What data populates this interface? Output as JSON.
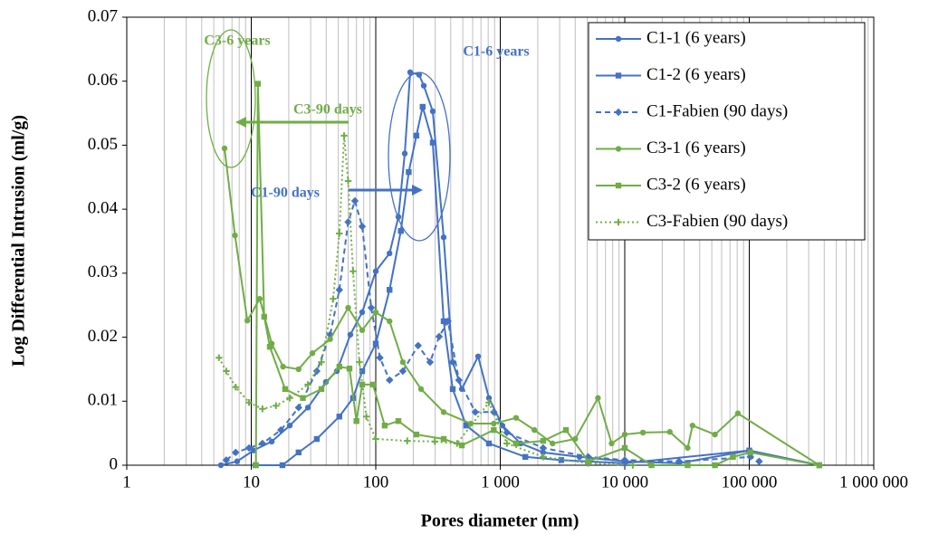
{
  "chart_data": {
    "type": "line",
    "xlabel": "Pores diameter  (nm)",
    "ylabel": "Log Differential Intrusion (ml/g)",
    "xscale": "log",
    "xlim": [
      1,
      1000000
    ],
    "xticks": [
      1,
      10,
      100,
      {
        "value": 1000,
        "label": "1 000"
      },
      {
        "value": 10000,
        "label": "10 000"
      },
      {
        "value": 100000,
        "label": "100 000"
      },
      {
        "value": 1000000,
        "label": "1 000 000"
      }
    ],
    "ylim": [
      0,
      0.07
    ],
    "yticks": [
      0,
      0.01,
      0.02,
      0.03,
      0.04,
      0.05,
      0.06,
      0.07
    ],
    "grid": true,
    "minor_grid": true,
    "legend": "upper right",
    "annotations": [
      {
        "text": "C3-6 years",
        "color": "#70ad47"
      },
      {
        "text": "C3-90 days",
        "color": "#70ad47"
      },
      {
        "text": "C1-6 years",
        "color": "#4472c4"
      },
      {
        "text": "C1-90 days",
        "color": "#4472c4"
      }
    ],
    "series": [
      {
        "name": "C1-1 (6 years)",
        "color": "#4472c4",
        "marker": "circle",
        "dash": "solid",
        "x": [
          5.7,
          7.7,
          10.4,
          14.6,
          20.4,
          28.5,
          39.8,
          48.7,
          62.5,
          77.8,
          100,
          129,
          152,
          171,
          189,
          223,
          243,
          287,
          351,
          415,
          491,
          664,
          811,
          1040,
          1460,
          2210,
          4330,
          10000,
          27300,
          100000,
          365000
        ],
        "values": [
          0,
          0.0006,
          0.0023,
          0.0037,
          0.0062,
          0.009,
          0.013,
          0.0147,
          0.0204,
          0.0239,
          0.0303,
          0.0331,
          0.0388,
          0.0487,
          0.0614,
          0.061,
          0.0593,
          0.0553,
          0.0356,
          0.0161,
          0.0119,
          0.017,
          0.0105,
          0.0062,
          0.0034,
          0.002,
          0.0013,
          0.0006,
          0.0003,
          0.0023,
          0
        ]
      },
      {
        "name": "C1-2 (6 years)",
        "color": "#4472c4",
        "marker": "square",
        "dash": "solid",
        "x": [
          10.8,
          17.8,
          24,
          33.6,
          51,
          65.7,
          77.8,
          100,
          129,
          159,
          184,
          212,
          238,
          287,
          351,
          415,
          533,
          811,
          1590,
          3090,
          10000,
          100000,
          365000
        ],
        "values": [
          0,
          0,
          0.002,
          0.0041,
          0.0076,
          0.0105,
          0.0147,
          0.019,
          0.0274,
          0.0366,
          0.0458,
          0.0515,
          0.056,
          0.0504,
          0.0225,
          0.0119,
          0.0062,
          0.0034,
          0.0013,
          0.0008,
          0.0003,
          0.0023,
          0
        ]
      },
      {
        "name": "C1-Fabien (90 days)",
        "color": "#4472c4",
        "marker": "diamond",
        "dash": "dashed",
        "x": [
          6.3,
          7.5,
          9.6,
          12.3,
          17.3,
          24,
          33.6,
          43,
          51,
          60,
          68,
          77.8,
          92,
          108,
          129,
          165,
          219,
          273,
          323,
          380,
          465,
          630,
          887,
          1130,
          2210,
          5090,
          10000,
          27300,
          102000,
          120000
        ],
        "values": [
          0.0008,
          0.002,
          0.0027,
          0.0034,
          0.0055,
          0.009,
          0.0147,
          0.0204,
          0.0274,
          0.038,
          0.0413,
          0.0373,
          0.0246,
          0.0168,
          0.0133,
          0.0147,
          0.0187,
          0.0161,
          0.0201,
          0.0225,
          0.0133,
          0.0083,
          0.0083,
          0.0051,
          0.0027,
          0.0013,
          0.0008,
          0.0006,
          0.0013,
          0.0006
        ]
      },
      {
        "name": "C3-1 (6 years)",
        "color": "#70ad47",
        "marker": "circle",
        "dash": "solid",
        "x": [
          6.1,
          7.4,
          9.3,
          11.7,
          14.6,
          18,
          24,
          31,
          43,
          60,
          77.8,
          100,
          129,
          165,
          231,
          351,
          580,
          887,
          1340,
          1880,
          2630,
          4000,
          6090,
          7840,
          10000,
          14000,
          23000,
          32000,
          35000,
          53000,
          81000,
          365000
        ],
        "values": [
          0.0495,
          0.0359,
          0.0226,
          0.026,
          0.019,
          0.0154,
          0.015,
          0.0175,
          0.0197,
          0.0246,
          0.0211,
          0.0239,
          0.0225,
          0.0161,
          0.0119,
          0.0083,
          0.0065,
          0.0065,
          0.0074,
          0.0055,
          0.0034,
          0.0041,
          0.0105,
          0.0034,
          0.0048,
          0.0051,
          0.0052,
          0.0027,
          0.0062,
          0.0048,
          0.0081,
          0
        ]
      },
      {
        "name": "C3-2 (6 years)",
        "color": "#70ad47",
        "marker": "square",
        "dash": "solid",
        "x": [
          10.9,
          11.3,
          12.7,
          14.1,
          18.7,
          26,
          36.6,
          51,
          61.5,
          70,
          77.8,
          95,
          118,
          152,
          212,
          351,
          491,
          887,
          1340,
          2210,
          3370,
          5090,
          10000,
          16400,
          32000,
          53000,
          74000,
          102000,
          365000
        ],
        "values": [
          0,
          0.0596,
          0.0232,
          0.0185,
          0.0119,
          0.0105,
          0.0119,
          0.0154,
          0.0151,
          0.0069,
          0.0126,
          0.0126,
          0.0062,
          0.0069,
          0.0048,
          0.0041,
          0.0031,
          0.0055,
          0.0034,
          0.0038,
          0.0055,
          0.0006,
          0.0027,
          0,
          0,
          0,
          0.0013,
          0.002,
          0
        ]
      },
      {
        "name": "C3-Fabien (90 days)",
        "color": "#70ad47",
        "marker": "plus",
        "dash": "dotted",
        "x": [
          5.5,
          6.3,
          7.5,
          9.6,
          12.3,
          15.8,
          20.4,
          28.5,
          36.6,
          45.5,
          51,
          55.7,
          60,
          65.7,
          73.9,
          84,
          100,
          179,
          298,
          450,
          811,
          1130,
          2210,
          5090,
          11600
        ],
        "values": [
          0.0168,
          0.0147,
          0.0122,
          0.0098,
          0.0088,
          0.0093,
          0.0105,
          0.0126,
          0.0161,
          0.026,
          0.0362,
          0.0515,
          0.0444,
          0.0303,
          0.0161,
          0.0076,
          0.0041,
          0.0038,
          0.0037,
          0.0034,
          0.0098,
          0.0034,
          0.0013,
          0.0003,
          0
        ]
      }
    ]
  }
}
